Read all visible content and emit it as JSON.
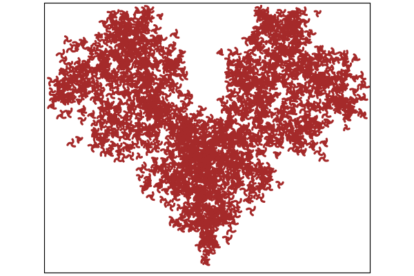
{
  "figure": {
    "background": "#ffffff",
    "axes_frame_color": "#000000",
    "fractal_color": "#a52a2a",
    "tick_labels_shown": false
  }
}
